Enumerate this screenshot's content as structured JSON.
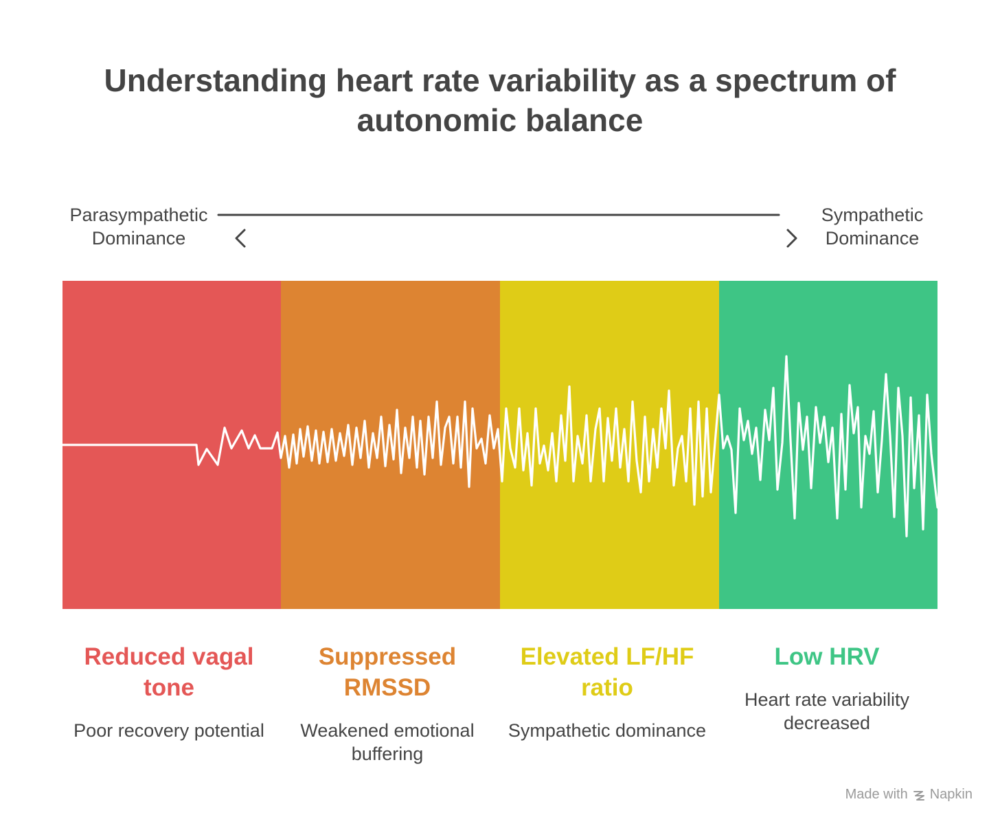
{
  "title": "Understanding heart rate variability as a spectrum of autonomic balance",
  "axis": {
    "left_label_line1": "Parasympathetic",
    "left_label_line2": "Dominance",
    "right_label_line1": "Sympathetic",
    "right_label_line2": "Dominance",
    "left_arrow_icon": "chevron-left-icon",
    "right_arrow_icon": "chevron-right-icon"
  },
  "segments": [
    {
      "color": "#E45756",
      "title": "Reduced vagal tone",
      "description": "Poor recovery potential"
    },
    {
      "color": "#DD8432",
      "title": "Suppressed RMSSD",
      "description": "Weakened emotional buffering"
    },
    {
      "color": "#DFCC17",
      "title": "Elevated LF/HF ratio",
      "description": "Sympathetic dominance"
    },
    {
      "color": "#3EC585",
      "title": "Low HRV",
      "description": "Heart rate variability decreased"
    }
  ],
  "wave": {
    "color": "#FFFFFF",
    "description_icon": "heart-rate-waveform-icon"
  },
  "credit": {
    "prefix": "Made with",
    "brand": "Napkin",
    "icon": "napkin-logo-icon"
  }
}
